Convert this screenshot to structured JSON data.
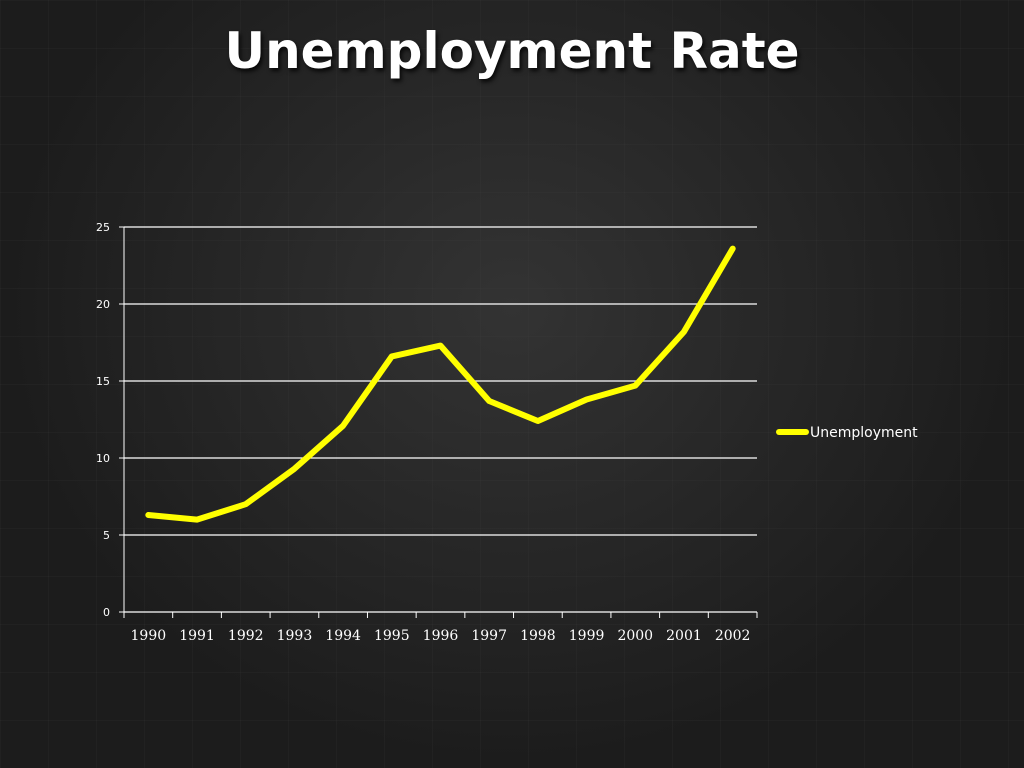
{
  "chart_data": {
    "type": "line",
    "title": "Unemployment Rate",
    "xlabel": "",
    "ylabel": "",
    "categories": [
      "1990",
      "1991",
      "1992",
      "1993",
      "1994",
      "1995",
      "1996",
      "1997",
      "1998",
      "1999",
      "2000",
      "2001",
      "2002"
    ],
    "series": [
      {
        "name": "Unemployment",
        "values": [
          6.3,
          6.0,
          7.0,
          9.3,
          12.1,
          16.6,
          17.3,
          13.7,
          12.4,
          13.8,
          14.7,
          18.2,
          23.6
        ]
      }
    ],
    "ylim": [
      0,
      25
    ],
    "yticks": [
      "0",
      "5",
      "10",
      "15",
      "20",
      "25"
    ],
    "grid": true,
    "legend_position": "right",
    "colors": {
      "line": "#ffff00",
      "gridline": "#ffffff",
      "axis": "#ffffff",
      "text": "#ffffff",
      "background": "#1c1c1c"
    }
  }
}
